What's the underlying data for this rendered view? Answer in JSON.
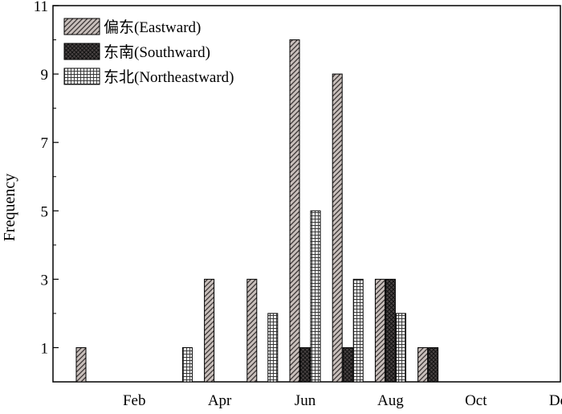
{
  "chart_data": {
    "type": "bar",
    "x": [
      1,
      2,
      3,
      4,
      5,
      6,
      7,
      8,
      9,
      10,
      11,
      12
    ],
    "xtick_labels": [
      {
        "month": 2,
        "label": "Feb"
      },
      {
        "month": 4,
        "label": "Apr"
      },
      {
        "month": 6,
        "label": "Jun"
      },
      {
        "month": 8,
        "label": "Aug"
      },
      {
        "month": 10,
        "label": "Oct"
      },
      {
        "month": 12,
        "label": "Dec"
      }
    ],
    "ylabel": "Frequency",
    "yticks": [
      1,
      3,
      5,
      7,
      9,
      11
    ],
    "ylim": [
      0,
      11
    ],
    "grid": false,
    "legend_position": "top-left",
    "series": [
      {
        "name": "偏东(Eastward)",
        "pattern": "diagonal-hatch",
        "color": "#c8bfbb",
        "values": [
          1,
          0,
          0,
          3,
          3,
          10,
          9,
          3,
          1,
          0,
          0,
          0
        ]
      },
      {
        "name": "东南(Southward)",
        "pattern": "cross-hatch",
        "color": "#3a3434",
        "values": [
          0,
          0,
          0,
          0,
          0,
          1,
          1,
          3,
          1,
          0,
          0,
          0
        ]
      },
      {
        "name": "东北(Northeastward)",
        "pattern": "grid",
        "color": "#ffffff",
        "values": [
          0,
          0,
          1,
          0,
          2,
          5,
          3,
          2,
          0,
          0,
          0,
          0
        ]
      }
    ]
  }
}
